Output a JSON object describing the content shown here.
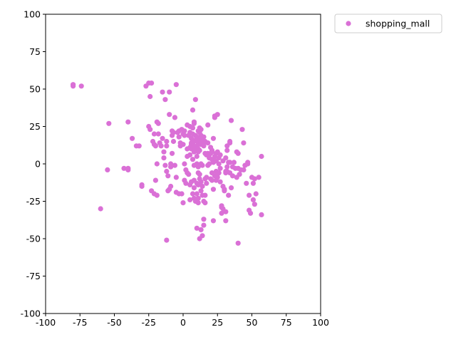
{
  "chart_data": {
    "type": "scatter",
    "title": "",
    "xlabel": "",
    "ylabel": "",
    "xlim": [
      -100,
      100
    ],
    "ylim": [
      -100,
      100
    ],
    "xticks": [
      -100,
      -75,
      -50,
      -25,
      0,
      25,
      50,
      75,
      100
    ],
    "yticks": [
      -100,
      -75,
      -50,
      -25,
      0,
      25,
      50,
      75,
      100
    ],
    "grid": false,
    "legend": "outside-top-right",
    "series": [
      {
        "name": "shopping_mall",
        "color": "#DA70D6",
        "points": [
          [
            -80,
            53
          ],
          [
            -80,
            52
          ],
          [
            -74,
            52
          ],
          [
            -54,
            27
          ],
          [
            -55,
            -4
          ],
          [
            -60,
            -30
          ],
          [
            -43,
            -3
          ],
          [
            -40,
            -4
          ],
          [
            -40,
            -3
          ],
          [
            -40,
            28
          ],
          [
            -37,
            17
          ],
          [
            -34,
            12
          ],
          [
            -32,
            12
          ],
          [
            -30,
            -14
          ],
          [
            -30,
            -15
          ],
          [
            -27,
            52
          ],
          [
            -25,
            54
          ],
          [
            -23,
            54
          ],
          [
            -24,
            45
          ],
          [
            -25,
            25
          ],
          [
            -24,
            23
          ],
          [
            -22,
            15
          ],
          [
            -21,
            13
          ],
          [
            -21,
            20
          ],
          [
            -20,
            12
          ],
          [
            -20,
            -11
          ],
          [
            -23,
            -18
          ],
          [
            -21,
            -20
          ],
          [
            -19,
            -21
          ],
          [
            -19,
            0
          ],
          [
            -19,
            28
          ],
          [
            -18,
            27
          ],
          [
            -18,
            20
          ],
          [
            -17,
            14
          ],
          [
            -16,
            12
          ],
          [
            -15,
            48
          ],
          [
            -15,
            17
          ],
          [
            -14,
            8
          ],
          [
            -14,
            4
          ],
          [
            -13,
            43
          ],
          [
            -12,
            15
          ],
          [
            -12,
            12
          ],
          [
            -13,
            -1
          ],
          [
            -12,
            -5
          ],
          [
            -11,
            -8
          ],
          [
            -12,
            -51
          ],
          [
            -10,
            48
          ],
          [
            -10,
            33
          ],
          [
            -11,
            -18
          ],
          [
            -10,
            -17
          ],
          [
            -9,
            -15
          ],
          [
            -9,
            -2
          ],
          [
            -9,
            0
          ],
          [
            -8,
            7
          ],
          [
            -8,
            19
          ],
          [
            -8,
            22
          ],
          [
            -7,
            21
          ],
          [
            -7,
            15
          ],
          [
            -6,
            31
          ],
          [
            -5,
            53
          ],
          [
            -6,
            -1
          ],
          [
            -5,
            -9
          ],
          [
            -5,
            -19
          ],
          [
            -4,
            21
          ],
          [
            -3,
            22
          ],
          [
            -3,
            18
          ],
          [
            -2,
            12
          ],
          [
            -2,
            14
          ],
          [
            -3,
            -20
          ],
          [
            -1,
            -20
          ],
          [
            -1,
            23
          ],
          [
            0,
            20
          ],
          [
            0,
            13
          ],
          [
            1,
            19
          ],
          [
            1,
            22
          ],
          [
            1,
            0
          ],
          [
            1,
            -11
          ],
          [
            2,
            -4
          ],
          [
            0,
            -26
          ],
          [
            2,
            -13
          ],
          [
            3,
            -6
          ],
          [
            3,
            26
          ],
          [
            3,
            10
          ],
          [
            3,
            5
          ],
          [
            4,
            19
          ],
          [
            4,
            -7
          ],
          [
            5,
            25
          ],
          [
            5,
            11
          ],
          [
            5,
            6
          ],
          [
            5,
            21
          ],
          [
            5,
            -14
          ],
          [
            5,
            -24
          ],
          [
            6,
            17
          ],
          [
            6,
            13
          ],
          [
            6,
            14
          ],
          [
            6,
            10
          ],
          [
            6,
            -12
          ],
          [
            7,
            36
          ],
          [
            7,
            24
          ],
          [
            7,
            20
          ],
          [
            7,
            3
          ],
          [
            7,
            12
          ],
          [
            7,
            -20
          ],
          [
            8,
            28
          ],
          [
            8,
            27
          ],
          [
            8,
            15
          ],
          [
            8,
            12
          ],
          [
            8,
            8
          ],
          [
            8,
            -1
          ],
          [
            8,
            -11
          ],
          [
            8,
            -16
          ],
          [
            8,
            -23
          ],
          [
            9,
            43
          ],
          [
            9,
            -25
          ],
          [
            9,
            19
          ],
          [
            9,
            16
          ],
          [
            9,
            11
          ],
          [
            9,
            10
          ],
          [
            10,
            18
          ],
          [
            10,
            5
          ],
          [
            10,
            0
          ],
          [
            10,
            -13
          ],
          [
            10,
            -20
          ],
          [
            10,
            -43
          ],
          [
            11,
            22
          ],
          [
            11,
            14
          ],
          [
            11,
            13
          ],
          [
            11,
            10
          ],
          [
            11,
            8
          ],
          [
            11,
            -2
          ],
          [
            11,
            -6
          ],
          [
            11,
            -14
          ],
          [
            11,
            -23
          ],
          [
            11,
            -26
          ],
          [
            12,
            24
          ],
          [
            12,
            21
          ],
          [
            12,
            16
          ],
          [
            12,
            9
          ],
          [
            12,
            -7
          ],
          [
            12,
            -10
          ],
          [
            12,
            -50
          ],
          [
            13,
            23
          ],
          [
            13,
            19
          ],
          [
            13,
            14
          ],
          [
            13,
            13
          ],
          [
            13,
            0
          ],
          [
            13,
            -12
          ],
          [
            13,
            -18
          ],
          [
            13,
            -44
          ],
          [
            14,
            17
          ],
          [
            14,
            15
          ],
          [
            14,
            -1
          ],
          [
            14,
            -15
          ],
          [
            14,
            -21
          ],
          [
            14,
            -48
          ],
          [
            15,
            18
          ],
          [
            15,
            14
          ],
          [
            15,
            12
          ],
          [
            15,
            -25
          ],
          [
            15,
            -37
          ],
          [
            15,
            -41
          ],
          [
            16,
            15
          ],
          [
            16,
            7
          ],
          [
            16,
            -10
          ],
          [
            16,
            -21
          ],
          [
            16,
            -26
          ],
          [
            17,
            6
          ],
          [
            17,
            -9
          ],
          [
            17,
            -13
          ],
          [
            18,
            26
          ],
          [
            18,
            14
          ],
          [
            18,
            7
          ],
          [
            18,
            -1
          ],
          [
            19,
            4
          ],
          [
            19,
            0
          ],
          [
            19,
            6
          ],
          [
            20,
            7
          ],
          [
            20,
            11
          ],
          [
            20,
            -10
          ],
          [
            21,
            8
          ],
          [
            21,
            9
          ],
          [
            21,
            3
          ],
          [
            21,
            -6
          ],
          [
            21,
            -11
          ],
          [
            22,
            17
          ],
          [
            22,
            1
          ],
          [
            22,
            -17
          ],
          [
            22,
            -38
          ],
          [
            23,
            32
          ],
          [
            23,
            31
          ],
          [
            23,
            5
          ],
          [
            23,
            -8
          ],
          [
            24,
            7
          ],
          [
            24,
            2
          ],
          [
            24,
            -5
          ],
          [
            24,
            -11
          ],
          [
            25,
            33
          ],
          [
            25,
            8
          ],
          [
            25,
            -7
          ],
          [
            25,
            -9
          ],
          [
            26,
            4
          ],
          [
            26,
            0
          ],
          [
            26,
            -6
          ],
          [
            27,
            6
          ],
          [
            27,
            -3
          ],
          [
            27,
            -12
          ],
          [
            28,
            -28
          ],
          [
            28,
            -29
          ],
          [
            28,
            -33
          ],
          [
            29,
            2
          ],
          [
            29,
            -15
          ],
          [
            29,
            -30
          ],
          [
            30,
            -17
          ],
          [
            30,
            -18
          ],
          [
            31,
            -32
          ],
          [
            31,
            -38
          ],
          [
            31,
            4
          ],
          [
            31,
            -5
          ],
          [
            31,
            -6
          ],
          [
            32,
            12
          ],
          [
            32,
            9
          ],
          [
            32,
            -2
          ],
          [
            32,
            -5
          ],
          [
            33,
            1
          ],
          [
            33,
            -21
          ],
          [
            34,
            14
          ],
          [
            34,
            15
          ],
          [
            34,
            1
          ],
          [
            34,
            -6
          ],
          [
            35,
            29
          ],
          [
            35,
            -16
          ],
          [
            36,
            -8
          ],
          [
            36,
            -2
          ],
          [
            37,
            1
          ],
          [
            38,
            -3
          ],
          [
            39,
            8
          ],
          [
            39,
            -9
          ],
          [
            40,
            7
          ],
          [
            40,
            -3
          ],
          [
            40,
            -53
          ],
          [
            41,
            -7
          ],
          [
            42,
            -4
          ],
          [
            43,
            23
          ],
          [
            44,
            -4
          ],
          [
            44,
            14
          ],
          [
            45,
            -1
          ],
          [
            46,
            -13
          ],
          [
            47,
            0
          ],
          [
            47,
            1
          ],
          [
            48,
            -21
          ],
          [
            48,
            -31
          ],
          [
            49,
            -33
          ],
          [
            50,
            -9
          ],
          [
            51,
            -13
          ],
          [
            51,
            -24
          ],
          [
            52,
            -27
          ],
          [
            52,
            -10
          ],
          [
            53,
            -20
          ],
          [
            55,
            -9
          ],
          [
            57,
            -34
          ],
          [
            57,
            5
          ]
        ]
      }
    ]
  }
}
